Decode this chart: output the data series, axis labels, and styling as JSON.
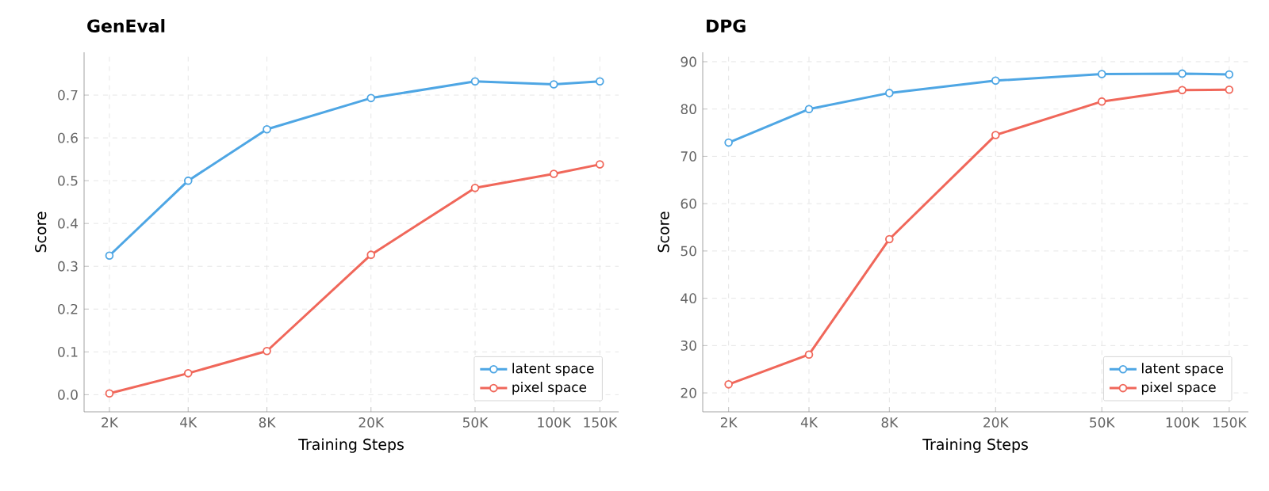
{
  "chart_data": [
    {
      "type": "line",
      "title": "GenEval",
      "xlabel": "Training Steps",
      "ylabel": "Score",
      "log": "x",
      "grid": true,
      "legend": "bottom right",
      "marker": "circle",
      "line_style": "solid",
      "x": [
        2000,
        4000,
        8000,
        20000,
        50000,
        100000,
        150000
      ],
      "xlim": [
        1600,
        177000
      ],
      "xticks": [
        {
          "value": 2000,
          "label": "2K"
        },
        {
          "value": 4000,
          "label": "4K"
        },
        {
          "value": 8000,
          "label": "8K"
        },
        {
          "value": 20000,
          "label": "20K"
        },
        {
          "value": 50000,
          "label": "50K"
        },
        {
          "value": 100000,
          "label": "100K"
        },
        {
          "value": 150000,
          "label": "150K"
        }
      ],
      "ylim": [
        -0.04,
        0.8
      ],
      "yticks": [
        {
          "value": 0,
          "label": "0.0"
        },
        {
          "value": 0.1,
          "label": "0.1"
        },
        {
          "value": 0.2,
          "label": "0.2"
        },
        {
          "value": 0.3,
          "label": "0.3"
        },
        {
          "value": 0.4,
          "label": "0.4"
        },
        {
          "value": 0.5,
          "label": "0.5"
        },
        {
          "value": 0.6,
          "label": "0.6"
        },
        {
          "value": 0.7,
          "label": "0.7"
        }
      ],
      "series": [
        {
          "name": "latent space",
          "color": "#4ea6e4",
          "values": [
            0.325,
            0.5,
            0.62,
            0.693,
            0.732,
            0.725,
            0.732
          ]
        },
        {
          "name": "pixel space",
          "color": "#f0675a",
          "values": [
            0.003,
            0.05,
            0.102,
            0.327,
            0.483,
            0.516,
            0.538
          ]
        }
      ]
    },
    {
      "type": "line",
      "title": "DPG",
      "xlabel": "Training Steps",
      "ylabel": "Score",
      "log": "x",
      "grid": true,
      "legend": "bottom right",
      "marker": "circle",
      "line_style": "solid",
      "x": [
        2000,
        4000,
        8000,
        20000,
        50000,
        100000,
        150000
      ],
      "xlim": [
        1600,
        177000
      ],
      "xticks": [
        {
          "value": 2000,
          "label": "2K"
        },
        {
          "value": 4000,
          "label": "4K"
        },
        {
          "value": 8000,
          "label": "8K"
        },
        {
          "value": 20000,
          "label": "20K"
        },
        {
          "value": 50000,
          "label": "50K"
        },
        {
          "value": 100000,
          "label": "100K"
        },
        {
          "value": 150000,
          "label": "150K"
        }
      ],
      "ylim": [
        16,
        92
      ],
      "yticks": [
        20,
        30,
        40,
        50,
        60,
        70,
        80,
        90
      ],
      "series": [
        {
          "name": "latent space",
          "color": "#4ea6e4",
          "values": [
            72.9,
            80.0,
            83.4,
            86.0,
            87.4,
            87.5,
            87.3
          ]
        },
        {
          "name": "pixel space",
          "color": "#f0675a",
          "values": [
            21.8,
            28.1,
            52.5,
            74.5,
            81.6,
            84.0,
            84.1
          ]
        }
      ]
    }
  ]
}
